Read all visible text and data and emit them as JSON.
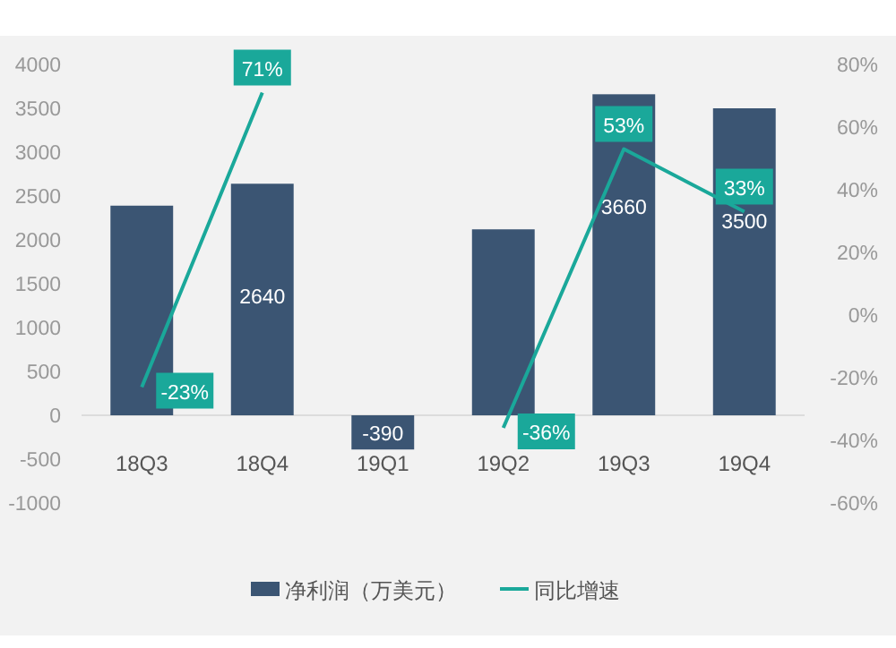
{
  "chart_data": {
    "type": "bar",
    "categories": [
      "18Q3",
      "18Q4",
      "19Q1",
      "19Q2",
      "19Q3",
      "19Q4"
    ],
    "series": [
      {
        "name": "净利润（万美元）",
        "color": "#3b5573",
        "values": [
          2390,
          2640,
          -390,
          2120,
          3660,
          3500
        ],
        "value_labels": [
          null,
          "2640",
          "-390",
          null,
          "3660",
          "3500"
        ]
      },
      {
        "name": "同比增速",
        "type": "line",
        "axis": "y2",
        "color": "#1aa89a",
        "values": [
          -23,
          71,
          null,
          -36,
          53,
          33
        ],
        "value_labels": [
          "-23%",
          "71%",
          null,
          "-36%",
          "53%",
          "33%"
        ]
      }
    ],
    "ylim": [
      -1000,
      4000
    ],
    "yticks": [
      -1000,
      -500,
      0,
      500,
      1000,
      1500,
      2000,
      2500,
      3000,
      3500,
      4000
    ],
    "y2lim": [
      -60,
      80
    ],
    "y2ticks": [
      {
        "value": -60,
        "label": "-60%"
      },
      {
        "value": -40,
        "label": "-40%"
      },
      {
        "value": -20,
        "label": "-20%"
      },
      {
        "value": 0,
        "label": "0%"
      },
      {
        "value": 20,
        "label": "20%"
      },
      {
        "value": 40,
        "label": "40%"
      },
      {
        "value": 60,
        "label": "60%"
      },
      {
        "value": 80,
        "label": "80%"
      }
    ],
    "legend": "bottom"
  }
}
